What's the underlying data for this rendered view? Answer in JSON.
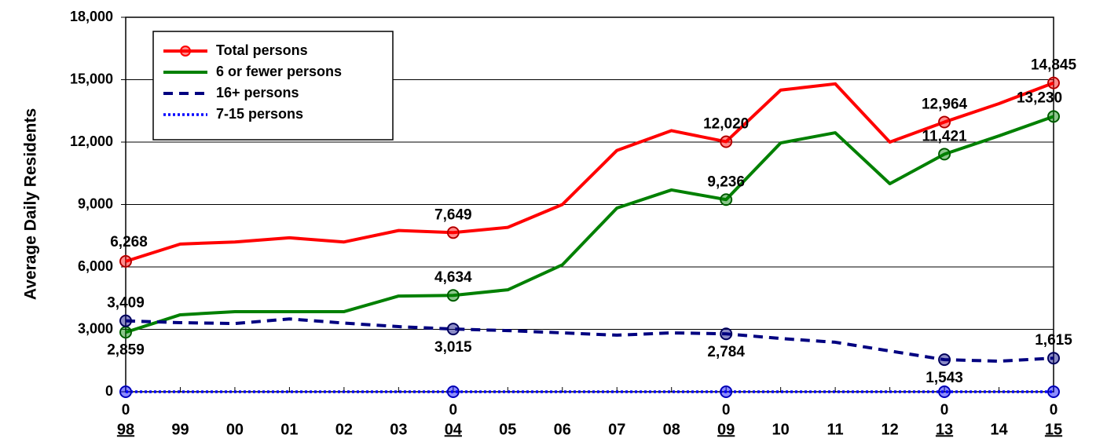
{
  "chart_data": {
    "type": "line",
    "y_axis_label": "Average Daily Residents",
    "categories": [
      "98",
      "99",
      "00",
      "01",
      "02",
      "03",
      "04",
      "05",
      "06",
      "07",
      "08",
      "09",
      "10",
      "11",
      "12",
      "13",
      "14",
      "15"
    ],
    "ylim": [
      0,
      18000
    ],
    "yticks": [
      0,
      {
        "value": 3000,
        "label": "3,000"
      },
      {
        "value": 6000,
        "label": "6,000"
      },
      {
        "value": 9000,
        "label": "9,000"
      },
      {
        "value": 12000,
        "label": "12,000"
      },
      {
        "value": 15000,
        "label": "15,000"
      },
      {
        "value": 18000,
        "label": "18,000"
      }
    ],
    "grid": true,
    "legend": "upper left",
    "series": [
      {
        "name": "Total persons",
        "color": "#ff0000",
        "dash": "solid",
        "values": [
          6268,
          7100,
          7200,
          7400,
          7200,
          7750,
          7649,
          7900,
          9000,
          11600,
          12550,
          12020,
          14500,
          14800,
          12000,
          12964,
          13850,
          14845
        ],
        "value_labels": [
          "6,268",
          null,
          null,
          null,
          null,
          null,
          "7,649",
          null,
          null,
          null,
          null,
          "12,020",
          null,
          null,
          null,
          "12,964",
          null,
          "14,845"
        ]
      },
      {
        "name": "6 or fewer persons",
        "color": "#008000",
        "dash": "solid",
        "values": [
          2859,
          3700,
          3850,
          3850,
          3850,
          4600,
          4634,
          4900,
          6100,
          8830,
          9700,
          9236,
          11960,
          12450,
          10000,
          11421,
          12300,
          13230
        ],
        "value_labels": [
          "2,859",
          null,
          null,
          null,
          null,
          null,
          "4,634",
          null,
          null,
          null,
          null,
          "9,236",
          null,
          null,
          null,
          "11,421",
          null,
          "13,230"
        ]
      },
      {
        "name": "16+ persons",
        "color": "#000080",
        "dash": "dashed",
        "values": [
          3409,
          3320,
          3280,
          3500,
          3300,
          3130,
          3015,
          2940,
          2830,
          2720,
          2830,
          2784,
          2560,
          2380,
          1960,
          1543,
          1470,
          1615
        ],
        "value_labels": [
          "3,409",
          null,
          null,
          null,
          null,
          null,
          "3,015",
          null,
          null,
          null,
          null,
          "2,784",
          null,
          null,
          null,
          "1,543",
          null,
          "1,615"
        ]
      },
      {
        "name": "7-15 persons",
        "color": "#0000ff",
        "dash": "dotted",
        "values": [
          0,
          0,
          0,
          0,
          0,
          0,
          0,
          0,
          0,
          0,
          0,
          0,
          0,
          0,
          0,
          0,
          0,
          0
        ],
        "value_labels": [
          "0",
          null,
          null,
          null,
          null,
          null,
          "0",
          null,
          null,
          null,
          null,
          "0",
          null,
          null,
          null,
          "0",
          null,
          "0"
        ]
      }
    ]
  }
}
